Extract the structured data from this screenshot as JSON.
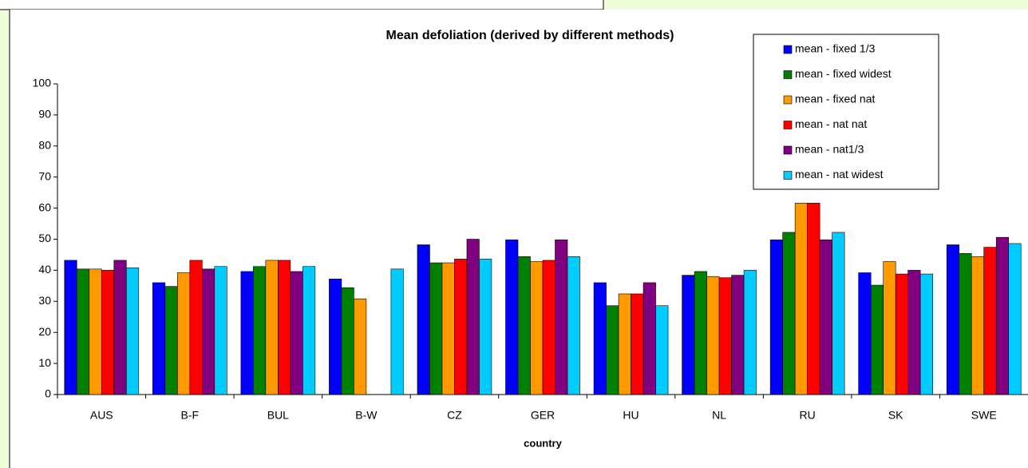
{
  "chart_data": {
    "type": "bar",
    "title": "Mean defoliation (derived by different methods)",
    "x_label": "country",
    "categories": [
      "AUS",
      "B-F",
      "BUL",
      "B-W",
      "CZ",
      "GER",
      "HU",
      "NL",
      "RU",
      "SK",
      "SWE"
    ],
    "series": [
      {
        "name": "mean - fixed 1/3",
        "color": "#0000ff",
        "values": [
          43.2,
          36,
          39.6,
          37.2,
          48.2,
          49.8,
          36,
          38.4,
          49.8,
          39.2,
          48.2
        ]
      },
      {
        "name": "mean - fixed widest",
        "color": "#008000",
        "values": [
          40.4,
          34.8,
          41.2,
          34.4,
          42.4,
          44.4,
          28.6,
          39.6,
          52.2,
          35.2,
          45.4
        ]
      },
      {
        "name": "mean - fixed nat",
        "color": "#ff9900",
        "values": [
          40.4,
          39.2,
          43.2,
          30.8,
          42.4,
          42.8,
          32.4,
          38,
          61.6,
          42.8,
          44.4
        ]
      },
      {
        "name": "mean - nat nat",
        "color": "#ff0000",
        "values": [
          40,
          43.2,
          43.2,
          null,
          43.6,
          43.2,
          32.4,
          37.6,
          61.6,
          38.8,
          47.4
        ]
      },
      {
        "name": "mean - nat1/3",
        "color": "#800080",
        "values": [
          43.2,
          40.4,
          39.6,
          null,
          50,
          49.8,
          36,
          38.4,
          49.8,
          40,
          50.6
        ]
      },
      {
        "name": "mean - nat widest",
        "color": "#00ccff",
        "values": [
          40.8,
          41.2,
          41.2,
          40.4,
          43.6,
          44.4,
          28.6,
          40,
          52.2,
          38.8,
          48.6
        ]
      }
    ],
    "ylim": [
      0,
      100
    ],
    "yticks": [
      0,
      10,
      20,
      30,
      40,
      50,
      60,
      70,
      80,
      90,
      100
    ],
    "legend": "top-right"
  }
}
